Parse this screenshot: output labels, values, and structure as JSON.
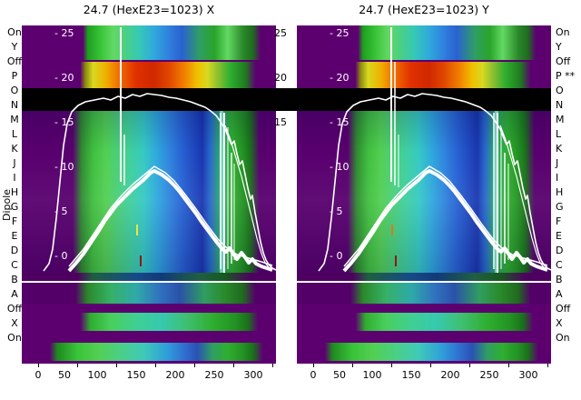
{
  "figure": {
    "titles": {
      "left": "24.7 (HexE23=1023) X",
      "right": "24.7 (HexE23=1023) Y"
    },
    "y_axis_title": "Dipole",
    "row_labels_left": [
      "On",
      "Y",
      "Off",
      "P",
      "O",
      "N",
      "M",
      "L",
      "K",
      "J",
      "I",
      "H",
      "G",
      "F",
      "E",
      "D",
      "C",
      "B",
      "A",
      "Off",
      "X",
      "On"
    ],
    "row_labels_right": [
      "On",
      "Y",
      "Off",
      "P **",
      "O",
      "N",
      "M",
      "L",
      "K",
      "J",
      "I",
      "H",
      "G",
      "F",
      "E",
      "D",
      "C",
      "B",
      "A",
      "Off",
      "X",
      "On"
    ],
    "inner_y_ticks": [
      "- 25",
      "- 20",
      "- 15",
      "- 10",
      "- 5",
      "- 0"
    ],
    "between_panel_ticks": [
      "25",
      "20",
      "15"
    ],
    "x_ticks": [
      "0",
      "50",
      "100",
      "150",
      "200",
      "250",
      "300"
    ]
  },
  "colors": {
    "background_purple": "#5c0070",
    "black_band": "#000000",
    "white_overlay": "#ffffff",
    "hot_band_center": "#d02800",
    "yellow_marker": "#e8e840",
    "orange_marker": "#e07818",
    "dark_red_marker": "#8a1a14"
  },
  "chart_data": {
    "type": "heatmap",
    "panels": [
      {
        "title": "24.7 (HexE23=1023) X"
      },
      {
        "title": "24.7 (HexE23=1023) Y"
      }
    ],
    "x_axis": {
      "range": [
        0,
        300
      ],
      "ticks": [
        0,
        50,
        100,
        150,
        200,
        250,
        300
      ]
    },
    "y_axis": {
      "label": "Dipole",
      "ticks": [
        25,
        20,
        15,
        10,
        5,
        0
      ],
      "row_categories": [
        "On",
        "Y",
        "Off",
        "P",
        "O",
        "N",
        "M",
        "L",
        "K",
        "J",
        "I",
        "H",
        "G",
        "F",
        "E",
        "D",
        "C",
        "B",
        "A",
        "Off",
        "X",
        "On"
      ]
    },
    "colormap": "jet-like: purple background; green-cyan-blue columns in center (x~80-280); yellow-orange-red hot band at Off/P rows; solid black band across O/N rows; white separator line near B row; green bands at Off/X/On rows bottom",
    "overlay_curves": [
      {
        "name": "flat-top envelope (white)",
        "approx_points": [
          [
            20,
            -1.8
          ],
          [
            35,
            2
          ],
          [
            45,
            13
          ],
          [
            55,
            17.5
          ],
          [
            80,
            18
          ],
          [
            120,
            18.3
          ],
          [
            160,
            18
          ],
          [
            190,
            17.2
          ],
          [
            210,
            16
          ],
          [
            225,
            14
          ],
          [
            235,
            12.5
          ],
          [
            245,
            10.5
          ],
          [
            255,
            8
          ],
          [
            265,
            5
          ],
          [
            275,
            2.5
          ],
          [
            285,
            -1
          ],
          [
            295,
            -1.8
          ]
        ]
      },
      {
        "name": "central peak (thick white)",
        "approx_points": [
          [
            55,
            -1.8
          ],
          [
            80,
            1
          ],
          [
            100,
            4
          ],
          [
            120,
            6.5
          ],
          [
            140,
            8.5
          ],
          [
            155,
            9.5
          ],
          [
            165,
            9.3
          ],
          [
            180,
            8
          ],
          [
            200,
            6
          ],
          [
            220,
            3.5
          ],
          [
            240,
            1.5
          ],
          [
            260,
            0
          ],
          [
            280,
            -1.5
          ]
        ]
      },
      {
        "name": "vertical white spikes",
        "approx_x_positions": [
          128,
          133,
          248,
          252,
          256,
          260
        ]
      }
    ],
    "annotations": [
      {
        "type": "black-band",
        "y_range": [
          16.3,
          18.8
        ]
      },
      {
        "type": "white-line",
        "y": -3.0
      },
      {
        "type": "tick-marker",
        "color": "#e8e840",
        "panel": "X",
        "x": 125,
        "y": 2.8
      },
      {
        "type": "tick-marker",
        "color": "#8a1a14",
        "panel": "X",
        "x": 130,
        "y": -0.8
      },
      {
        "type": "tick-marker",
        "color": "#e07818",
        "panel": "Y",
        "x": 120,
        "y": 2.8
      },
      {
        "type": "tick-marker",
        "color": "#8a1a14",
        "panel": "Y",
        "x": 124,
        "y": -0.8
      }
    ]
  }
}
